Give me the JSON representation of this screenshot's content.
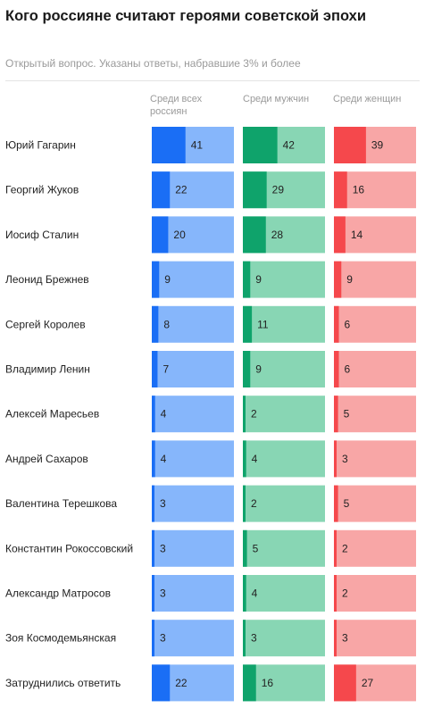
{
  "title": "Кого россияне считают героями советской эпохи",
  "subtitle": "Открытый вопрос. Указаны ответы, набравшие 3% и более",
  "colors": {
    "all_dark": "#1a6ef5",
    "all_light": "#86b6fb",
    "men_dark": "#0fa36b",
    "men_light": "#88d6b4",
    "women_dark": "#f5484c",
    "women_light": "#f8a6a6"
  },
  "chart_data": {
    "type": "bar",
    "title": "Кого россияне считают героями советской эпохи",
    "subtitle": "Открытый вопрос. Указаны ответы, набравшие 3% и более",
    "categories": [
      "Юрий Гагарин",
      "Георгий Жуков",
      "Иосиф Сталин",
      "Леонид Брежнев",
      "Сергей Королев",
      "Владимир Ленин",
      "Алексей Маресьев",
      "Андрей Сахаров",
      "Валентина Терешкова",
      "Константин Рокоссовский",
      "Александр Матросов",
      "Зоя Космодемьянская",
      "Затруднились ответить"
    ],
    "series": [
      {
        "name": "Среди всех россиян",
        "values": [
          41,
          22,
          20,
          9,
          8,
          7,
          4,
          4,
          3,
          3,
          3,
          3,
          22
        ]
      },
      {
        "name": "Среди мужчин",
        "values": [
          42,
          29,
          28,
          9,
          11,
          9,
          2,
          4,
          2,
          5,
          4,
          3,
          16
        ]
      },
      {
        "name": "Среди женщин",
        "values": [
          39,
          16,
          14,
          9,
          6,
          6,
          5,
          3,
          5,
          2,
          2,
          3,
          27
        ]
      }
    ],
    "xlim": [
      0,
      100
    ],
    "legend": "top",
    "grid": false
  }
}
